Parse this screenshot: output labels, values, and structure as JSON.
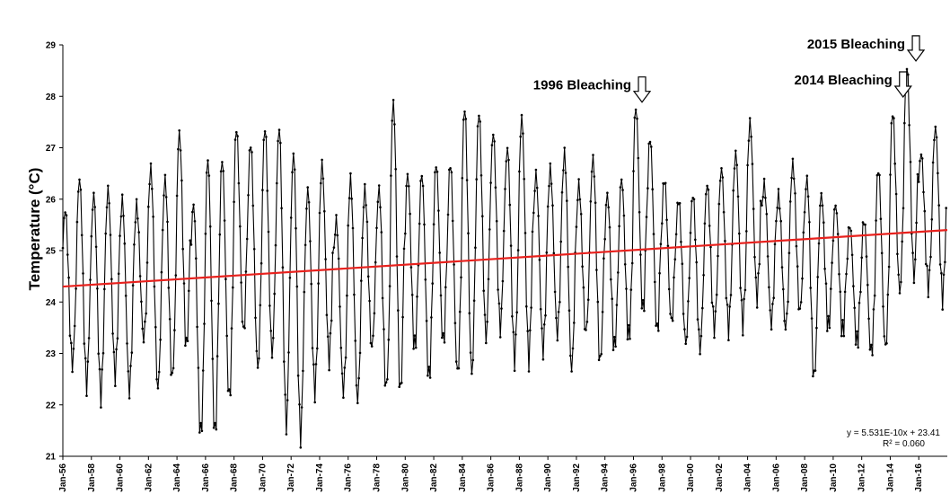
{
  "chart_data": {
    "type": "line",
    "title": "",
    "xlabel": "",
    "ylabel": "Temperature (°C)",
    "ylim": [
      21,
      29
    ],
    "yticks": [
      "21",
      "22",
      "23",
      "24",
      "25",
      "26",
      "27",
      "28",
      "29"
    ],
    "xlim_years": [
      1956,
      2018
    ],
    "xticks": [
      "Jan-56",
      "Jan-58",
      "Jan-60",
      "Jan-62",
      "Jan-64",
      "Jan-66",
      "Jan-68",
      "Jan-70",
      "Jan-72",
      "Jan-74",
      "Jan-76",
      "Jan-78",
      "Jan-80",
      "Jan-82",
      "Jan-84",
      "Jan-86",
      "Jan-88",
      "Jan-90",
      "Jan-92",
      "Jan-94",
      "Jan-96",
      "Jan-98",
      "Jan-00",
      "Jan-02",
      "Jan-04",
      "Jan-06",
      "Jan-08",
      "Jan-10",
      "Jan-12",
      "Jan-14",
      "Jan-16"
    ],
    "xtick_years": [
      1956,
      1958,
      1960,
      1962,
      1964,
      1966,
      1968,
      1970,
      1972,
      1974,
      1976,
      1978,
      1980,
      1982,
      1984,
      1986,
      1988,
      1990,
      1992,
      1994,
      1996,
      1998,
      2000,
      2002,
      2004,
      2006,
      2008,
      2010,
      2012,
      2014,
      2016
    ],
    "series": [
      {
        "color": "#000000",
        "marker": "dot",
        "annual_peaks": [
          {
            "year": 1956,
            "max": 25.8,
            "min": 22.8
          },
          {
            "year": 1957,
            "max": 26.4,
            "min": 22.4
          },
          {
            "year": 1958,
            "max": 26.1,
            "min": 22.2
          },
          {
            "year": 1959,
            "max": 26.2,
            "min": 22.6
          },
          {
            "year": 1960,
            "max": 26.0,
            "min": 22.3
          },
          {
            "year": 1961,
            "max": 25.9,
            "min": 23.3
          },
          {
            "year": 1962,
            "max": 26.6,
            "min": 22.3
          },
          {
            "year": 1963,
            "max": 26.4,
            "min": 22.5
          },
          {
            "year": 1964,
            "max": 27.3,
            "min": 23.1
          },
          {
            "year": 1965,
            "max": 25.9,
            "min": 21.4
          },
          {
            "year": 1966,
            "max": 26.8,
            "min": 21.4
          },
          {
            "year": 1967,
            "max": 26.8,
            "min": 22.1
          },
          {
            "year": 1968,
            "max": 27.4,
            "min": 23.4
          },
          {
            "year": 1969,
            "max": 27.1,
            "min": 22.7
          },
          {
            "year": 1970,
            "max": 27.4,
            "min": 23.0
          },
          {
            "year": 1971,
            "max": 27.4,
            "min": 21.6
          },
          {
            "year": 1972,
            "max": 26.9,
            "min": 21.4
          },
          {
            "year": 1973,
            "max": 26.2,
            "min": 22.3
          },
          {
            "year": 1974,
            "max": 26.7,
            "min": 22.9
          },
          {
            "year": 1975,
            "max": 25.6,
            "min": 22.3
          },
          {
            "year": 1976,
            "max": 26.4,
            "min": 22.1
          },
          {
            "year": 1977,
            "max": 26.2,
            "min": 23.1
          },
          {
            "year": 1978,
            "max": 26.2,
            "min": 22.3
          },
          {
            "year": 1979,
            "max": 27.9,
            "min": 22.2
          },
          {
            "year": 1980,
            "max": 26.5,
            "min": 23.1
          },
          {
            "year": 1981,
            "max": 26.5,
            "min": 22.5
          },
          {
            "year": 1982,
            "max": 26.7,
            "min": 23.2
          },
          {
            "year": 1983,
            "max": 26.7,
            "min": 22.6
          },
          {
            "year": 1984,
            "max": 27.8,
            "min": 22.6
          },
          {
            "year": 1985,
            "max": 27.7,
            "min": 23.3
          },
          {
            "year": 1986,
            "max": 27.3,
            "min": 23.5
          },
          {
            "year": 1987,
            "max": 27.0,
            "min": 22.9
          },
          {
            "year": 1988,
            "max": 27.6,
            "min": 22.9
          },
          {
            "year": 1989,
            "max": 26.5,
            "min": 23.1
          },
          {
            "year": 1990,
            "max": 26.6,
            "min": 23.4
          },
          {
            "year": 1991,
            "max": 26.9,
            "min": 22.7
          },
          {
            "year": 1992,
            "max": 26.3,
            "min": 23.4
          },
          {
            "year": 1993,
            "max": 26.8,
            "min": 22.8
          },
          {
            "year": 1994,
            "max": 26.1,
            "min": 23.1
          },
          {
            "year": 1995,
            "max": 26.4,
            "min": 23.3
          },
          {
            "year": 1996,
            "max": 27.8,
            "min": 23.8
          },
          {
            "year": 1997,
            "max": 27.2,
            "min": 23.4
          },
          {
            "year": 1998,
            "max": 26.4,
            "min": 23.6
          },
          {
            "year": 1999,
            "max": 26.0,
            "min": 23.2
          },
          {
            "year": 2000,
            "max": 26.1,
            "min": 23.1
          },
          {
            "year": 2001,
            "max": 26.3,
            "min": 23.5
          },
          {
            "year": 2002,
            "max": 26.6,
            "min": 23.5
          },
          {
            "year": 2003,
            "max": 26.9,
            "min": 23.6
          },
          {
            "year": 2004,
            "max": 27.5,
            "min": 24.1
          },
          {
            "year": 2005,
            "max": 26.3,
            "min": 23.6
          },
          {
            "year": 2006,
            "max": 26.1,
            "min": 23.5
          },
          {
            "year": 2007,
            "max": 26.7,
            "min": 23.8
          },
          {
            "year": 2008,
            "max": 26.4,
            "min": 22.5
          },
          {
            "year": 2009,
            "max": 26.1,
            "min": 23.5
          },
          {
            "year": 2010,
            "max": 25.9,
            "min": 23.4
          },
          {
            "year": 2011,
            "max": 25.5,
            "min": 23.2
          },
          {
            "year": 2012,
            "max": 25.6,
            "min": 23.0
          },
          {
            "year": 2013,
            "max": 26.6,
            "min": 23.1
          },
          {
            "year": 2014,
            "max": 27.7,
            "min": 24.2
          },
          {
            "year": 2015,
            "max": 28.6,
            "min": 24.5
          },
          {
            "year": 2016,
            "max": 26.9,
            "min": 24.3
          },
          {
            "year": 2017,
            "max": 27.4,
            "min": 24.1
          }
        ]
      },
      {
        "color": "#e8211d",
        "type": "trendline",
        "start": {
          "year": 1956,
          "value": 24.3
        },
        "end": {
          "year": 2018,
          "value": 25.4
        }
      }
    ],
    "annotations": [
      {
        "text": "1996 Bleaching",
        "year": 1996.6,
        "value": 27.8
      },
      {
        "text": "2014 Bleaching",
        "year": 2014.9,
        "value": 27.9
      },
      {
        "text": "2015 Bleaching",
        "year": 2015.8,
        "value": 28.6
      }
    ],
    "equation_line1": "y = 5.531E-10x + 23.41",
    "equation_line2": "R² = 0.060",
    "grid": false,
    "legend": "none"
  }
}
